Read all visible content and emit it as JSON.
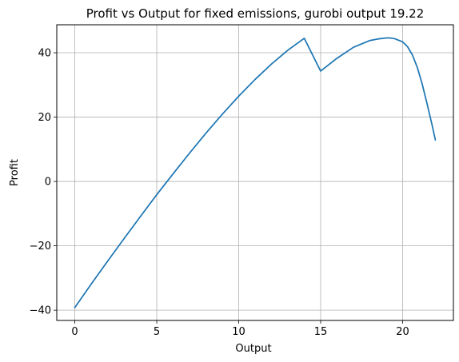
{
  "chart_data": {
    "type": "line",
    "title": "Profit vs Output for fixed emissions, gurobi output 19.22",
    "xlabel": "Output",
    "ylabel": "Profit",
    "xlim": [
      -1.1,
      23.1
    ],
    "ylim": [
      -43.2,
      48.7
    ],
    "xticks": [
      0,
      5,
      10,
      15,
      20
    ],
    "yticks": [
      -40,
      -20,
      0,
      20,
      40
    ],
    "xtick_labels": [
      "0",
      "5",
      "10",
      "15",
      "20"
    ],
    "ytick_labels": [
      "−40",
      "−20",
      "0",
      "20",
      "40"
    ],
    "grid": true,
    "legend": "none",
    "series": [
      {
        "color": "#1f77b4",
        "x": [
          0,
          1,
          2,
          3,
          4,
          5,
          6,
          7,
          8,
          9,
          10,
          11,
          12,
          13,
          14,
          15,
          16,
          17,
          18,
          18.5,
          19,
          19.22,
          19.5,
          20,
          20.3,
          20.6,
          20.9,
          21.2,
          21.5,
          21.8,
          22.0
        ],
        "y": [
          -39.2,
          -31.9,
          -24.8,
          -17.8,
          -10.9,
          -4.1,
          2.4,
          8.8,
          15.0,
          20.9,
          26.5,
          31.7,
          36.5,
          40.8,
          44.5,
          34.3,
          38.3,
          41.7,
          43.8,
          44.3,
          44.6,
          44.6,
          44.4,
          43.4,
          41.9,
          39.3,
          35.4,
          30.2,
          24.0,
          17.5,
          12.9
        ]
      }
    ]
  }
}
